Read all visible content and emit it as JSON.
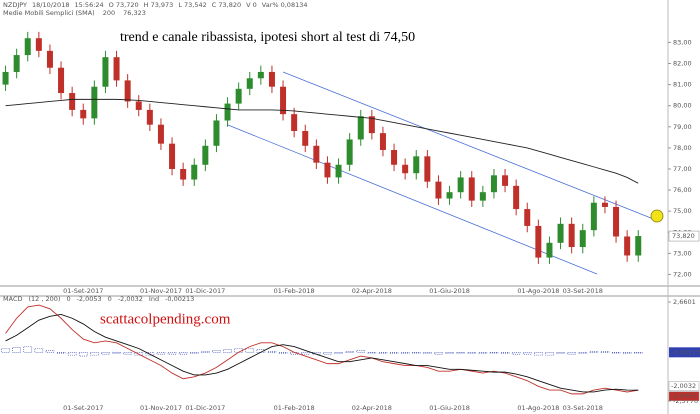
{
  "header": {
    "symbol": "NZDJPY",
    "line1": [
      "18/10/2018",
      "15:56:24",
      "O 73,720",
      "H 73,973",
      "L 73,542",
      "C 73,820",
      "V 0",
      "Var% 0,08134"
    ],
    "line2": [
      "200",
      "76,323"
    ]
  },
  "watermark": "scattacolpending.com",
  "chart_data": [
    {
      "type": "candlestick",
      "title": "trend e canale ribassista, ipotesi short al test di 74,50",
      "categories": [
        null,
        null,
        null,
        null,
        null,
        null,
        null,
        "01-Set-2017",
        null,
        null,
        null,
        null,
        null,
        null,
        "01-Nov-2017",
        null,
        null,
        null,
        "01-Dic-2017",
        null,
        null,
        null,
        null,
        null,
        null,
        null,
        "01-Feb-2018",
        null,
        null,
        null,
        null,
        null,
        null,
        "02-Apr-2018",
        null,
        null,
        null,
        null,
        null,
        null,
        "01-Giu-2018",
        null,
        null,
        null,
        null,
        null,
        null,
        null,
        "01-Ago-2018",
        null,
        null,
        null,
        "03-Set-2018",
        null,
        null,
        null,
        null,
        null
      ],
      "open": [
        81.0,
        81.6,
        82.4,
        83.2,
        82.6,
        81.8,
        80.6,
        79.8,
        79.4,
        80.9,
        82.3,
        81.2,
        80.2,
        79.8,
        79.1,
        78.2,
        77.0,
        76.5,
        77.2,
        78.1,
        79.3,
        80.1,
        80.8,
        81.3,
        81.6,
        80.9,
        79.6,
        78.8,
        78.1,
        77.3,
        76.6,
        77.2,
        78.4,
        79.5,
        78.7,
        77.9,
        77.2,
        76.8,
        77.6,
        76.4,
        75.6,
        75.9,
        76.6,
        75.5,
        75.9,
        76.7,
        76.2,
        75.1,
        74.3,
        72.8,
        73.5,
        74.4,
        73.3,
        74.1,
        75.4,
        75.2,
        73.8,
        72.9
      ],
      "high": [
        81.9,
        82.7,
        83.5,
        83.5,
        82.9,
        82.1,
        80.9,
        80.1,
        81.2,
        82.6,
        82.6,
        81.5,
        80.5,
        80.1,
        79.4,
        78.5,
        77.3,
        77.5,
        78.4,
        79.6,
        80.4,
        81.1,
        81.6,
        81.9,
        81.9,
        81.2,
        79.9,
        79.1,
        78.4,
        77.6,
        77.5,
        78.7,
        79.8,
        79.8,
        79.0,
        78.2,
        77.5,
        77.9,
        77.9,
        76.7,
        76.2,
        76.9,
        76.9,
        76.2,
        77.0,
        77.0,
        76.5,
        75.4,
        74.6,
        73.8,
        74.7,
        74.7,
        74.4,
        75.7,
        75.7,
        75.5,
        74.1,
        74.1
      ],
      "low": [
        80.7,
        81.3,
        82.1,
        82.3,
        81.5,
        80.3,
        79.5,
        79.1,
        79.1,
        80.6,
        80.9,
        79.9,
        79.5,
        78.8,
        77.9,
        76.7,
        76.2,
        76.2,
        76.9,
        77.8,
        79.0,
        79.8,
        80.5,
        81.0,
        80.6,
        79.3,
        78.5,
        77.8,
        77.0,
        76.3,
        76.3,
        76.9,
        78.1,
        78.4,
        77.6,
        76.9,
        76.5,
        76.5,
        76.1,
        75.3,
        75.3,
        75.6,
        75.2,
        75.2,
        75.6,
        75.9,
        74.8,
        74.0,
        72.5,
        72.5,
        73.2,
        73.0,
        73.0,
        73.8,
        74.9,
        73.5,
        72.6,
        72.6
      ],
      "close": [
        81.6,
        82.4,
        83.2,
        82.6,
        81.8,
        80.6,
        79.8,
        79.4,
        80.9,
        82.3,
        81.2,
        80.2,
        79.8,
        79.1,
        78.2,
        77.0,
        76.5,
        77.2,
        78.1,
        79.3,
        80.1,
        80.8,
        81.3,
        81.6,
        80.9,
        79.6,
        78.8,
        78.1,
        77.3,
        76.6,
        77.2,
        78.4,
        79.5,
        78.7,
        77.9,
        77.2,
        76.8,
        77.6,
        76.4,
        75.6,
        75.9,
        76.6,
        75.5,
        75.9,
        76.7,
        76.2,
        75.1,
        74.3,
        72.8,
        73.5,
        74.4,
        73.3,
        74.1,
        75.4,
        75.2,
        73.8,
        72.9,
        73.82
      ],
      "up_color": "#2e8b2e",
      "down_color": "#c0302a",
      "last_price": {
        "value": 73.82,
        "label": "73,820"
      },
      "series": [
        {
          "name": "Medie Mobili Semplici (SMA)",
          "color": "#222222",
          "values": [
            80.0,
            80.05,
            80.1,
            80.15,
            80.2,
            80.25,
            80.3,
            80.3,
            80.3,
            80.3,
            80.3,
            80.28,
            80.25,
            80.2,
            80.15,
            80.1,
            80.05,
            80.0,
            79.95,
            79.9,
            79.85,
            79.8,
            79.8,
            79.8,
            79.8,
            79.78,
            79.75,
            79.7,
            79.65,
            79.6,
            79.55,
            79.5,
            79.45,
            79.4,
            79.3,
            79.2,
            79.1,
            79.0,
            78.9,
            78.8,
            78.7,
            78.6,
            78.5,
            78.4,
            78.3,
            78.2,
            78.1,
            78.0,
            77.85,
            77.7,
            77.55,
            77.4,
            77.25,
            77.1,
            76.95,
            76.8,
            76.6,
            76.323
          ]
        }
      ],
      "ylim": [
        71.5,
        84.3
      ],
      "yticks": [
        {
          "value": 72,
          "label": "72,00"
        },
        {
          "value": 73,
          "label": "73,00"
        },
        {
          "value": 74,
          "label": "74,00"
        },
        {
          "value": 75,
          "label": "75,00"
        },
        {
          "value": 76,
          "label": "76,00"
        },
        {
          "value": 77,
          "label": "77,00"
        },
        {
          "value": 78,
          "label": "78,00"
        },
        {
          "value": 79,
          "label": "79,00"
        },
        {
          "value": 80,
          "label": "80,00"
        },
        {
          "value": 81,
          "label": "81,00"
        },
        {
          "value": 82,
          "label": "82,00"
        },
        {
          "value": 83,
          "label": "83,00"
        }
      ]
    },
    {
      "type": "macd",
      "title": "MACD",
      "params": [
        "(12 , 200)",
        "0",
        "-2,0053",
        "0",
        "-2,0032",
        "Ind",
        "-0,00213"
      ],
      "hist": {
        "color": "#3040b0",
        "last_label": "-0,00213",
        "values": [
          0.2,
          0.25,
          0.3,
          0.2,
          0.1,
          -0.05,
          -0.15,
          -0.2,
          -0.15,
          -0.1,
          -0.05,
          -0.1,
          -0.15,
          -0.15,
          -0.1,
          -0.1,
          -0.1,
          -0.05,
          0.05,
          0.1,
          0.15,
          0.2,
          0.2,
          0.15,
          0.05,
          -0.05,
          -0.1,
          -0.1,
          -0.1,
          -0.1,
          -0.05,
          0.05,
          0.1,
          0.0,
          -0.05,
          -0.05,
          -0.05,
          0.0,
          -0.05,
          -0.1,
          -0.05,
          0.0,
          -0.05,
          -0.05,
          0.0,
          -0.05,
          -0.1,
          -0.1,
          -0.15,
          -0.15,
          -0.05,
          -0.1,
          -0.05,
          0.05,
          0.05,
          0.0,
          -0.05,
          -0.00213
        ]
      },
      "series": [
        {
          "color": "#c0302a",
          "last_label": "-2,0053",
          "values": [
            1.0,
            1.8,
            2.4,
            2.5,
            2.3,
            1.8,
            1.2,
            0.7,
            0.5,
            0.6,
            0.5,
            0.2,
            -0.1,
            -0.4,
            -0.7,
            -1.1,
            -1.4,
            -1.3,
            -1.1,
            -0.8,
            -0.4,
            0.0,
            0.3,
            0.5,
            0.5,
            0.3,
            0.0,
            -0.2,
            -0.4,
            -0.6,
            -0.6,
            -0.4,
            -0.2,
            -0.3,
            -0.5,
            -0.6,
            -0.7,
            -0.7,
            -0.8,
            -1.0,
            -1.0,
            -0.9,
            -1.0,
            -1.1,
            -1.0,
            -1.1,
            -1.3,
            -1.5,
            -1.8,
            -2.0,
            -2.0,
            -2.2,
            -2.2,
            -2.0,
            -1.9,
            -2.0,
            -2.1,
            -2.0053
          ]
        },
        {
          "color": "#111111",
          "last_label": "-2,0032",
          "values": [
            0.6,
            0.9,
            1.3,
            1.7,
            1.9,
            2.0,
            1.8,
            1.5,
            1.1,
            0.8,
            0.6,
            0.4,
            0.2,
            -0.1,
            -0.4,
            -0.7,
            -1.0,
            -1.2,
            -1.2,
            -1.1,
            -0.9,
            -0.6,
            -0.3,
            0.0,
            0.3,
            0.4,
            0.3,
            0.1,
            -0.1,
            -0.3,
            -0.5,
            -0.5,
            -0.4,
            -0.3,
            -0.4,
            -0.5,
            -0.6,
            -0.7,
            -0.7,
            -0.8,
            -0.9,
            -0.9,
            -0.95,
            -1.0,
            -1.05,
            -1.05,
            -1.15,
            -1.3,
            -1.5,
            -1.7,
            -1.9,
            -2.0,
            -2.1,
            -2.1,
            -2.0,
            -1.95,
            -2.0,
            -2.0032
          ]
        }
      ],
      "ylim": [
        -2.577,
        2.6601
      ],
      "yticks": [
        {
          "value": 2.6601,
          "label": "2,6601"
        },
        {
          "value": -2.577,
          "label": "-2,5770"
        }
      ]
    }
  ]
}
